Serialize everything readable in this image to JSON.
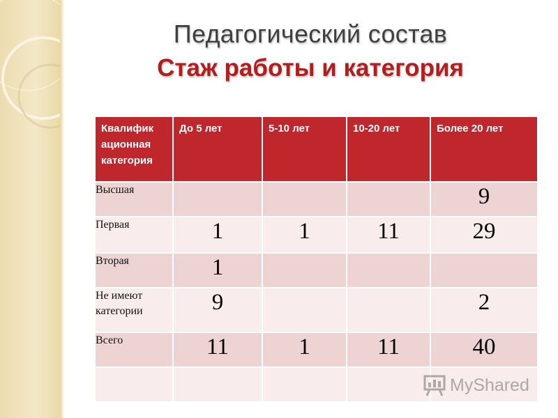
{
  "slide": {
    "title": "Педагогический состав",
    "subtitle": "Стаж работы и категория"
  },
  "table": {
    "headers": [
      "Квалифик ационная категория",
      "До 5 лет",
      "5-10 лет",
      "10-20 лет",
      "Более 20 лет"
    ],
    "rows": [
      {
        "label": "Высшая",
        "values": [
          "",
          "",
          "",
          "9"
        ]
      },
      {
        "label": "Первая",
        "values": [
          "1",
          "1",
          "11",
          "29"
        ]
      },
      {
        "label": "Вторая",
        "values": [
          "1",
          "",
          "",
          ""
        ]
      },
      {
        "label": "Не имеют категории",
        "values": [
          "9",
          "",
          "",
          "2"
        ]
      },
      {
        "label": "Всего",
        "values": [
          "11",
          "1",
          "11",
          "40"
        ]
      },
      {
        "label": "",
        "values": [
          "",
          "",
          "",
          ""
        ]
      }
    ]
  },
  "watermark": {
    "text": "MyShared",
    "icon": "presentation-board-icon"
  },
  "colors": {
    "header_bg": "#c0272d",
    "title_accent": "#b01e1e",
    "row_dark": "#eed3d3",
    "row_light": "#f8ecec",
    "side_band": "#f0e3bd"
  }
}
